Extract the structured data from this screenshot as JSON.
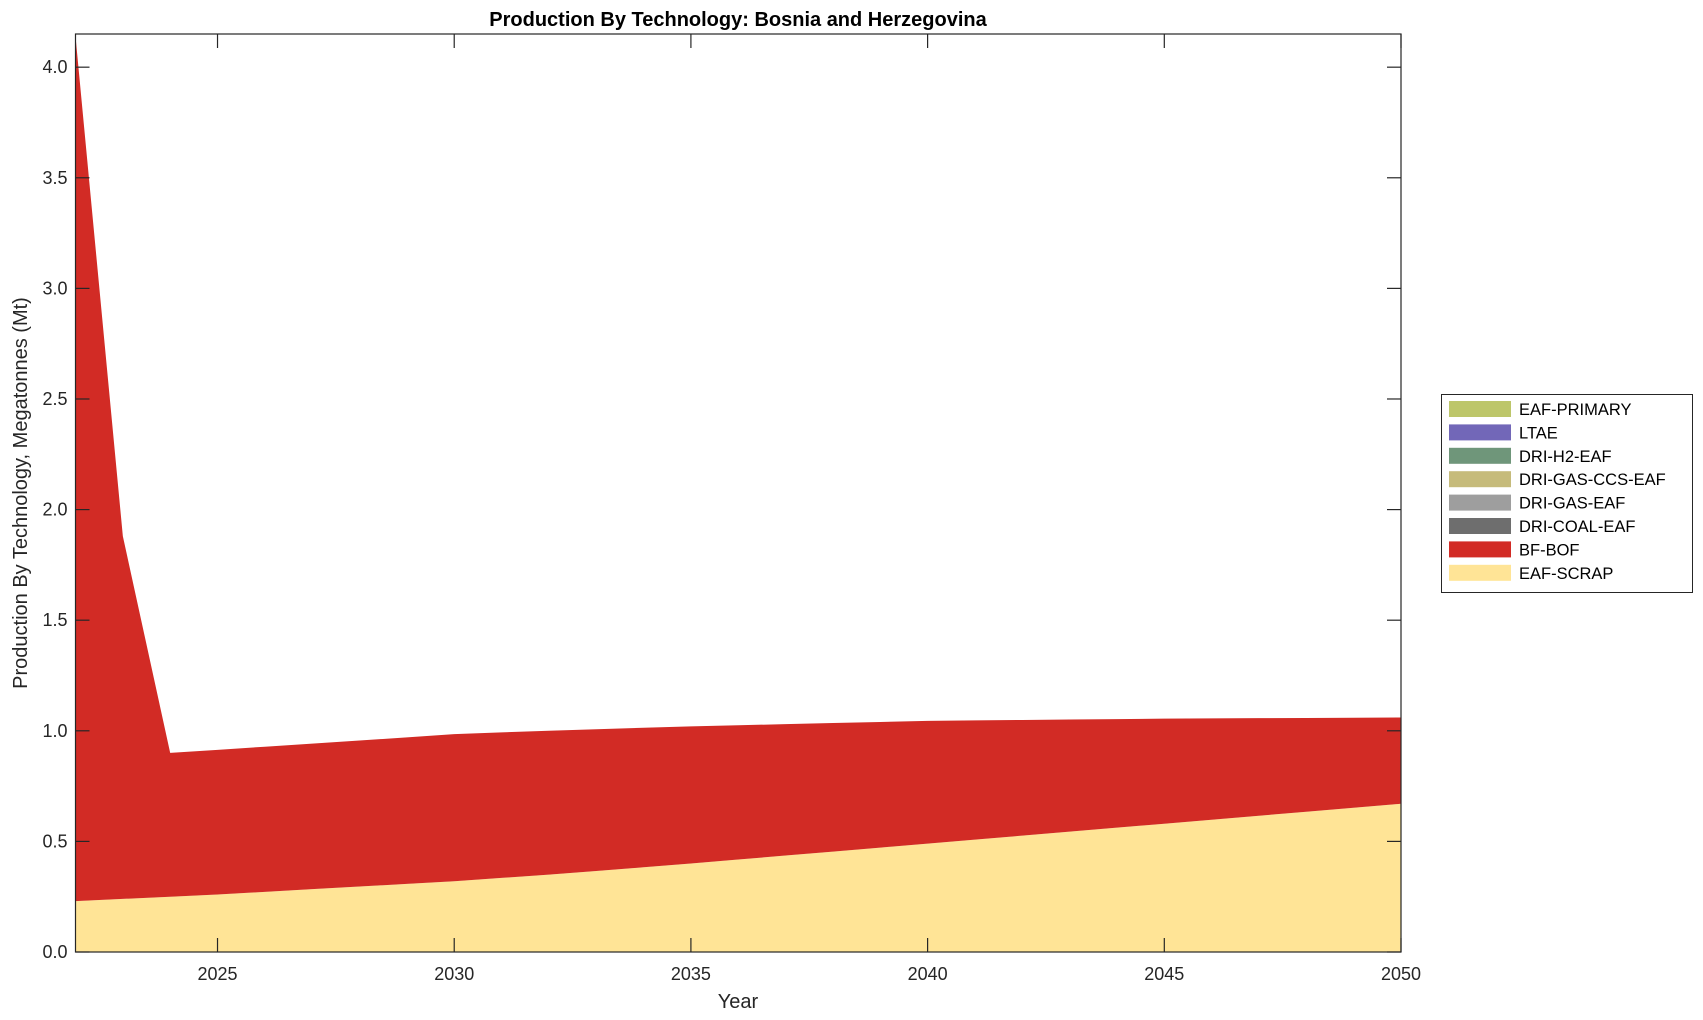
{
  "chart_data": {
    "type": "area",
    "stacked": true,
    "title": "Production By Technology: Bosnia and Herzegovina",
    "xlabel": "Year",
    "ylabel": "Production By Technology, Megatonnes (Mt)",
    "xlim": [
      2022,
      2050
    ],
    "ylim": [
      0,
      4.15
    ],
    "xticks": [
      "2025",
      "2030",
      "2035",
      "2040",
      "2045",
      "2050"
    ],
    "yticks": [
      "0.0",
      "0.5",
      "1.0",
      "1.5",
      "2.0",
      "2.5",
      "3.0",
      "3.5",
      "4.0"
    ],
    "legend_position": "outside-right",
    "x": [
      2022,
      2023,
      2024,
      2025,
      2026,
      2027,
      2028,
      2029,
      2030,
      2031,
      2032,
      2033,
      2034,
      2035,
      2036,
      2037,
      2038,
      2039,
      2040,
      2041,
      2042,
      2043,
      2044,
      2045,
      2046,
      2047,
      2048,
      2049,
      2050
    ],
    "series": [
      {
        "name": "EAF-SCRAP",
        "color": "#FFE496",
        "values": [
          0.23,
          0.24,
          0.25,
          0.26,
          0.272,
          0.284,
          0.296,
          0.308,
          0.32,
          0.335,
          0.35,
          0.366,
          0.383,
          0.4,
          0.418,
          0.436,
          0.454,
          0.472,
          0.49,
          0.508,
          0.526,
          0.544,
          0.562,
          0.58,
          0.598,
          0.616,
          0.634,
          0.652,
          0.67
        ]
      },
      {
        "name": "BF-BOF",
        "color": "#D22B25",
        "values": [
          3.91,
          1.64,
          0.65,
          0.654,
          0.656,
          0.658,
          0.66,
          0.662,
          0.665,
          0.658,
          0.65,
          0.641,
          0.631,
          0.62,
          0.607,
          0.594,
          0.581,
          0.568,
          0.555,
          0.539,
          0.523,
          0.507,
          0.491,
          0.475,
          0.458,
          0.441,
          0.424,
          0.407,
          0.39
        ]
      },
      {
        "name": "DRI-COAL-EAF",
        "color": "#6E6E6E",
        "values": [
          0,
          0,
          0,
          0,
          0,
          0,
          0,
          0,
          0,
          0,
          0,
          0,
          0,
          0,
          0,
          0,
          0,
          0,
          0,
          0,
          0,
          0,
          0,
          0,
          0,
          0,
          0,
          0,
          0
        ]
      },
      {
        "name": "DRI-GAS-EAF",
        "color": "#9E9E9E",
        "values": [
          0,
          0,
          0,
          0,
          0,
          0,
          0,
          0,
          0,
          0,
          0,
          0,
          0,
          0,
          0,
          0,
          0,
          0,
          0,
          0,
          0,
          0,
          0,
          0,
          0,
          0,
          0,
          0,
          0
        ]
      },
      {
        "name": "DRI-GAS-CCS-EAF",
        "color": "#C6BB7B",
        "values": [
          0,
          0,
          0,
          0,
          0,
          0,
          0,
          0,
          0,
          0,
          0,
          0,
          0,
          0,
          0,
          0,
          0,
          0,
          0,
          0,
          0,
          0,
          0,
          0,
          0,
          0,
          0,
          0,
          0
        ]
      },
      {
        "name": "DRI-H2-EAF",
        "color": "#6F967A",
        "values": [
          0,
          0,
          0,
          0,
          0,
          0,
          0,
          0,
          0,
          0,
          0,
          0,
          0,
          0,
          0,
          0,
          0,
          0,
          0,
          0,
          0,
          0,
          0,
          0,
          0,
          0,
          0,
          0,
          0
        ]
      },
      {
        "name": "LTAE",
        "color": "#7267B8",
        "values": [
          0,
          0,
          0,
          0,
          0,
          0,
          0,
          0,
          0,
          0,
          0,
          0,
          0,
          0,
          0,
          0,
          0,
          0,
          0,
          0,
          0,
          0,
          0,
          0,
          0,
          0,
          0,
          0,
          0
        ]
      },
      {
        "name": "EAF-PRIMARY",
        "color": "#BDC66A",
        "values": [
          0,
          0,
          0,
          0,
          0,
          0,
          0,
          0,
          0,
          0,
          0,
          0,
          0,
          0,
          0,
          0,
          0,
          0,
          0,
          0,
          0,
          0,
          0,
          0,
          0,
          0,
          0,
          0,
          0
        ]
      }
    ]
  }
}
